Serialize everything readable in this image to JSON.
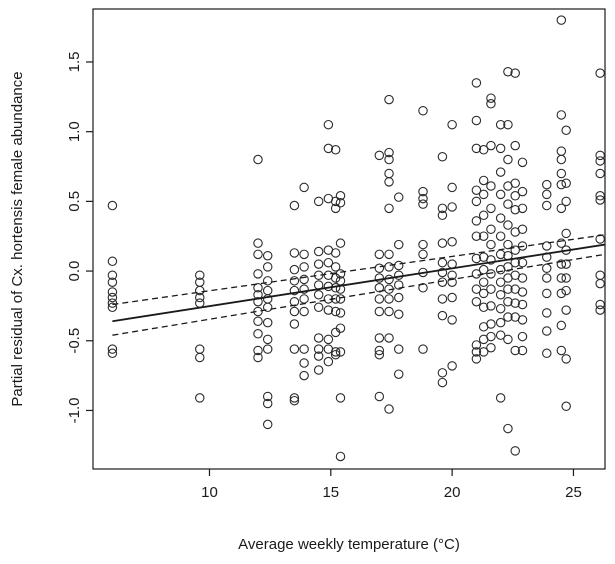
{
  "chart_data": {
    "type": "scatter",
    "title": "",
    "xlabel": "Average weekly temperature (°C)",
    "ylabel": "Partial residual  of Cx. hortensis female abundance",
    "xlim": [
      5.2,
      26.3
    ],
    "ylim": [
      -1.42,
      1.88
    ],
    "x_ticks": [
      10,
      15,
      20,
      25
    ],
    "x_tick_labels": [
      "10",
      "15",
      "20",
      "25"
    ],
    "y_ticks": [
      -1.0,
      -0.5,
      0.0,
      0.5,
      1.0,
      1.5
    ],
    "y_tick_labels": [
      "-1.0",
      "-0.5",
      "0.0",
      "0.5",
      "1.0",
      "1.5"
    ],
    "grid": false,
    "colors": {
      "points": "#2b2b2b",
      "lines": "#1a1a1a",
      "axes": "#1a1a1a"
    },
    "fit_line": {
      "x": [
        6.0,
        26.3
      ],
      "y": [
        -0.36,
        0.19
      ]
    },
    "ci_upper": {
      "x": [
        6.0,
        26.3
      ],
      "y": [
        -0.24,
        0.26
      ]
    },
    "ci_lower": {
      "x": [
        6.0,
        26.3
      ],
      "y": [
        -0.46,
        0.12
      ]
    },
    "points": {
      "x": [
        6.0,
        6.0,
        6.0,
        6.0,
        6.0,
        6.0,
        6.0,
        6.0,
        6.0,
        6.0,
        9.6,
        9.6,
        9.6,
        9.6,
        9.6,
        9.6,
        9.6,
        9.6,
        12.0,
        12.0,
        12.0,
        12.0,
        12.0,
        12.0,
        12.0,
        12.0,
        12.0,
        12.0,
        12.0,
        12.0,
        12.4,
        12.4,
        12.4,
        12.4,
        12.4,
        12.4,
        12.4,
        12.4,
        12.4,
        12.4,
        12.4,
        12.4,
        13.5,
        13.5,
        13.5,
        13.5,
        13.5,
        13.5,
        13.5,
        13.5,
        13.5,
        13.5,
        13.5,
        13.9,
        13.9,
        13.9,
        13.9,
        13.9,
        13.9,
        13.9,
        13.9,
        13.9,
        13.9,
        14.5,
        14.5,
        14.5,
        14.5,
        14.5,
        14.5,
        14.5,
        14.5,
        14.5,
        14.5,
        14.5,
        14.9,
        14.9,
        14.9,
        14.9,
        14.9,
        14.9,
        14.9,
        14.9,
        14.9,
        14.9,
        14.9,
        14.9,
        15.2,
        15.2,
        15.2,
        15.2,
        15.2,
        15.2,
        15.2,
        15.2,
        15.2,
        15.2,
        15.2,
        15.2,
        15.4,
        15.4,
        15.4,
        15.4,
        15.4,
        15.4,
        15.4,
        15.4,
        15.4,
        15.4,
        15.4,
        15.4,
        17.0,
        17.0,
        17.0,
        17.0,
        17.0,
        17.0,
        17.0,
        17.0,
        17.0,
        17.0,
        17.0,
        17.4,
        17.4,
        17.4,
        17.4,
        17.4,
        17.4,
        17.4,
        17.4,
        17.4,
        17.4,
        17.4,
        17.4,
        17.4,
        17.4,
        17.8,
        17.8,
        17.8,
        17.8,
        17.8,
        17.8,
        17.8,
        17.8,
        17.8,
        18.8,
        18.8,
        18.8,
        18.8,
        18.8,
        18.8,
        18.8,
        18.8,
        18.8,
        19.6,
        19.6,
        19.6,
        19.6,
        19.6,
        19.6,
        19.6,
        19.6,
        19.6,
        19.6,
        19.6,
        20.0,
        20.0,
        20.0,
        20.0,
        20.0,
        20.0,
        20.0,
        20.0,
        20.0,
        20.0,
        21.0,
        21.0,
        21.0,
        21.0,
        21.0,
        21.0,
        21.0,
        21.0,
        21.0,
        21.0,
        21.0,
        21.0,
        21.0,
        21.0,
        21.3,
        21.3,
        21.3,
        21.3,
        21.3,
        21.3,
        21.3,
        21.3,
        21.3,
        21.3,
        21.3,
        21.3,
        21.3,
        21.6,
        21.6,
        21.6,
        21.6,
        21.6,
        21.6,
        21.6,
        21.6,
        21.6,
        21.6,
        21.6,
        21.6,
        21.6,
        21.6,
        22.0,
        22.0,
        22.0,
        22.0,
        22.0,
        22.0,
        22.0,
        22.0,
        22.0,
        22.0,
        22.0,
        22.0,
        22.0,
        22.0,
        22.3,
        22.3,
        22.3,
        22.3,
        22.3,
        22.3,
        22.3,
        22.3,
        22.3,
        22.3,
        22.3,
        22.3,
        22.3,
        22.3,
        22.3,
        22.6,
        22.6,
        22.6,
        22.6,
        22.6,
        22.6,
        22.6,
        22.6,
        22.6,
        22.6,
        22.6,
        22.6,
        22.6,
        22.6,
        22.9,
        22.9,
        22.9,
        22.9,
        22.9,
        22.9,
        22.9,
        22.9,
        22.9,
        22.9,
        22.9,
        22.9,
        23.9,
        23.9,
        23.9,
        23.9,
        23.9,
        23.9,
        23.9,
        23.9,
        23.9,
        23.9,
        23.9,
        24.5,
        24.5,
        24.5,
        24.5,
        24.5,
        24.5,
        24.5,
        24.5,
        24.5,
        24.5,
        24.5,
        24.5,
        24.5,
        24.7,
        24.7,
        24.7,
        24.7,
        24.7,
        24.7,
        24.7,
        24.7,
        24.7,
        24.7,
        24.7,
        26.1,
        26.1,
        26.1,
        26.1,
        26.1,
        26.1,
        26.1,
        26.1,
        26.1,
        26.1,
        26.1
      ],
      "y": [
        0.47,
        0.07,
        -0.03,
        -0.08,
        -0.15,
        -0.19,
        -0.23,
        -0.26,
        -0.56,
        -0.59,
        -0.03,
        -0.08,
        -0.14,
        -0.19,
        -0.23,
        -0.56,
        -0.62,
        -0.91,
        0.8,
        0.2,
        0.12,
        -0.02,
        -0.12,
        -0.17,
        -0.22,
        -0.29,
        -0.36,
        -0.45,
        -0.57,
        -0.62,
        0.11,
        0.03,
        -0.07,
        -0.14,
        -0.2,
        -0.26,
        -0.37,
        -0.49,
        -0.56,
        -0.9,
        -0.95,
        -1.1,
        0.47,
        0.13,
        0.01,
        -0.07,
        -0.14,
        -0.22,
        -0.29,
        -0.38,
        -0.56,
        -0.91,
        -0.93,
        0.6,
        0.12,
        0.03,
        -0.06,
        -0.13,
        -0.2,
        -0.29,
        -0.56,
        -0.66,
        -0.75,
        0.5,
        0.14,
        0.05,
        -0.03,
        -0.1,
        -0.17,
        -0.26,
        -0.48,
        -0.56,
        -0.61,
        -0.71,
        1.05,
        0.88,
        0.52,
        0.15,
        0.06,
        -0.03,
        -0.11,
        -0.2,
        -0.28,
        -0.49,
        -0.56,
        -0.65,
        0.87,
        0.5,
        0.45,
        0.13,
        0.03,
        -0.05,
        -0.12,
        -0.2,
        -0.29,
        -0.44,
        -0.58,
        -0.6,
        0.54,
        0.49,
        0.2,
        -0.02,
        -0.07,
        -0.13,
        -0.2,
        -0.3,
        -0.41,
        -0.58,
        -0.91,
        -1.33,
        0.83,
        0.12,
        0.02,
        -0.05,
        -0.12,
        -0.2,
        -0.29,
        -0.48,
        -0.57,
        -0.6,
        -0.9,
        1.23,
        0.85,
        0.8,
        0.7,
        0.64,
        0.45,
        0.12,
        0.03,
        -0.06,
        -0.13,
        -0.2,
        -0.29,
        -0.48,
        -0.99,
        0.53,
        0.19,
        0.04,
        -0.03,
        -0.1,
        -0.19,
        -0.31,
        -0.56,
        -0.74,
        1.15,
        0.57,
        0.52,
        0.48,
        0.19,
        0.12,
        -0.01,
        -0.12,
        -0.56,
        0.82,
        0.45,
        0.4,
        0.2,
        0.06,
        -0.01,
        -0.08,
        -0.2,
        -0.32,
        -0.73,
        -0.8,
        1.05,
        0.6,
        0.46,
        0.21,
        0.05,
        -0.03,
        -0.08,
        -0.19,
        -0.35,
        -0.68,
        1.35,
        1.08,
        0.88,
        0.58,
        0.5,
        0.36,
        0.25,
        0.09,
        -0.02,
        -0.13,
        -0.22,
        -0.53,
        -0.58,
        -0.63,
        0.87,
        0.65,
        0.55,
        0.4,
        0.25,
        0.1,
        0.01,
        -0.08,
        -0.16,
        -0.26,
        -0.4,
        -0.49,
        -0.58,
        1.24,
        1.2,
        0.9,
        0.61,
        0.45,
        0.3,
        0.19,
        0.08,
        -0.02,
        -0.13,
        -0.25,
        -0.38,
        -0.47,
        -0.55,
        1.05,
        0.88,
        0.71,
        0.55,
        0.38,
        0.25,
        0.12,
        0.01,
        -0.08,
        -0.17,
        -0.27,
        -0.37,
        -0.46,
        -0.91,
        1.43,
        1.05,
        0.8,
        0.61,
        0.48,
        0.33,
        0.19,
        0.11,
        0.03,
        -0.05,
        -0.13,
        -0.22,
        -0.33,
        -0.49,
        -1.13,
        1.42,
        0.9,
        0.63,
        0.54,
        0.44,
        0.28,
        0.15,
        0.06,
        -0.03,
        -0.13,
        -0.23,
        -0.33,
        -0.57,
        -1.29,
        0.78,
        0.57,
        0.45,
        0.3,
        0.18,
        0.06,
        -0.05,
        -0.15,
        -0.24,
        -0.35,
        -0.47,
        -0.57,
        0.62,
        0.55,
        0.47,
        0.18,
        0.1,
        0.02,
        -0.05,
        -0.16,
        -0.3,
        -0.43,
        -0.59,
        1.8,
        1.12,
        0.86,
        0.8,
        0.7,
        0.62,
        0.45,
        0.2,
        0.05,
        -0.05,
        -0.16,
        -0.39,
        -0.57,
        1.01,
        0.63,
        0.5,
        0.27,
        0.15,
        0.05,
        -0.05,
        -0.14,
        -0.28,
        -0.63,
        -0.97,
        1.42,
        0.83,
        0.79,
        0.7,
        0.54,
        0.51,
        0.23,
        -0.03,
        -0.09,
        -0.24,
        -0.28
      ]
    }
  }
}
